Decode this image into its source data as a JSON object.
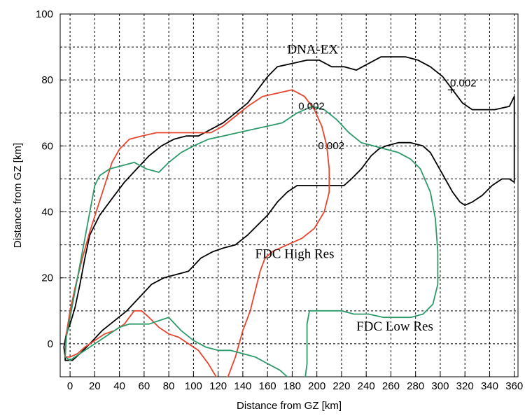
{
  "chart_data": {
    "type": "line",
    "title": "",
    "xlabel": "Distance from GZ [km]",
    "ylabel": "Distance from GZ [km]",
    "xlim": [
      -8,
      363
    ],
    "ylim": [
      -10,
      100
    ],
    "xticks": [
      "0",
      "20",
      "40",
      "60",
      "80",
      "100",
      "120",
      "140",
      "160",
      "180",
      "200",
      "220",
      "240",
      "260",
      "280",
      "300",
      "320",
      "340",
      "360"
    ],
    "yticks": [
      "100",
      "80",
      "60",
      "40",
      "20",
      "0"
    ],
    "grid": true,
    "colors": {
      "dna": "#000000",
      "high": "#e8452e",
      "low": "#2e9a6a"
    },
    "series": [
      {
        "key": "dna",
        "points": [
          [
            -4,
            -4
          ],
          [
            -5,
            -1
          ],
          [
            -3,
            3
          ],
          [
            0,
            6
          ],
          [
            4,
            11
          ],
          [
            8,
            18
          ],
          [
            12,
            26
          ],
          [
            16,
            33
          ],
          [
            24,
            39
          ],
          [
            34,
            44
          ],
          [
            44,
            49
          ],
          [
            54,
            53
          ],
          [
            64,
            57
          ],
          [
            74,
            60
          ],
          [
            84,
            62
          ],
          [
            94,
            63
          ],
          [
            104,
            63
          ],
          [
            114,
            65
          ],
          [
            124,
            67
          ],
          [
            134,
            70
          ],
          [
            144,
            73
          ],
          [
            152,
            77
          ],
          [
            160,
            81
          ],
          [
            168,
            84
          ],
          [
            180,
            85
          ],
          [
            192,
            86
          ],
          [
            202,
            86
          ],
          [
            212,
            84
          ],
          [
            222,
            84
          ],
          [
            232,
            83
          ],
          [
            242,
            85
          ],
          [
            252,
            87
          ],
          [
            262,
            87
          ],
          [
            272,
            87
          ],
          [
            282,
            86
          ],
          [
            292,
            84
          ],
          [
            302,
            81
          ],
          [
            310,
            77
          ],
          [
            318,
            73
          ],
          [
            326,
            71
          ],
          [
            334,
            71
          ],
          [
            344,
            71
          ],
          [
            356,
            72
          ],
          [
            360,
            75
          ],
          [
            360,
            72
          ],
          [
            360,
            60
          ],
          [
            360,
            49
          ],
          [
            356,
            50
          ],
          [
            350,
            50
          ],
          [
            342,
            48
          ],
          [
            334,
            45
          ],
          [
            326,
            43
          ],
          [
            320,
            42
          ],
          [
            316,
            43
          ],
          [
            310,
            46
          ],
          [
            304,
            50
          ],
          [
            298,
            54
          ],
          [
            292,
            58
          ],
          [
            286,
            60
          ],
          [
            276,
            61
          ],
          [
            266,
            61
          ],
          [
            256,
            60
          ],
          [
            250,
            59
          ],
          [
            244,
            57
          ],
          [
            236,
            53
          ],
          [
            228,
            50
          ],
          [
            222,
            48
          ],
          [
            214,
            48
          ],
          [
            204,
            48
          ],
          [
            194,
            48
          ],
          [
            184,
            48
          ],
          [
            176,
            46
          ],
          [
            168,
            43
          ],
          [
            160,
            39
          ],
          [
            152,
            36
          ],
          [
            144,
            33
          ],
          [
            134,
            30
          ],
          [
            124,
            29
          ],
          [
            116,
            28
          ],
          [
            106,
            26
          ],
          [
            96,
            22
          ],
          [
            86,
            21
          ],
          [
            76,
            20
          ],
          [
            66,
            18
          ],
          [
            56,
            14
          ],
          [
            46,
            10
          ],
          [
            36,
            7
          ],
          [
            26,
            4
          ],
          [
            16,
            0
          ],
          [
            8,
            -3
          ],
          [
            2,
            -5
          ],
          [
            -4,
            -5
          ],
          [
            -4,
            -4
          ]
        ]
      },
      {
        "key": "high",
        "points": [
          [
            -4,
            -4
          ],
          [
            -3,
            3
          ],
          [
            0,
            10
          ],
          [
            4,
            17
          ],
          [
            10,
            26
          ],
          [
            16,
            34
          ],
          [
            22,
            41
          ],
          [
            28,
            48
          ],
          [
            34,
            55
          ],
          [
            40,
            59
          ],
          [
            48,
            62
          ],
          [
            58,
            63
          ],
          [
            70,
            64
          ],
          [
            82,
            64
          ],
          [
            94,
            64
          ],
          [
            104,
            64
          ],
          [
            114,
            64
          ],
          [
            124,
            66
          ],
          [
            134,
            69
          ],
          [
            144,
            72
          ],
          [
            156,
            75
          ],
          [
            168,
            76
          ],
          [
            180,
            77
          ],
          [
            190,
            75
          ],
          [
            198,
            71
          ],
          [
            204,
            66
          ],
          [
            208,
            60
          ],
          [
            210,
            53
          ],
          [
            210,
            46
          ],
          [
            206,
            40
          ],
          [
            198,
            35
          ],
          [
            188,
            32
          ],
          [
            176,
            30
          ],
          [
            164,
            28
          ],
          [
            158,
            26
          ],
          [
            154,
            22
          ],
          [
            150,
            16
          ],
          [
            146,
            10
          ],
          [
            140,
            4
          ],
          [
            134,
            -4
          ],
          [
            128,
            -10
          ],
          [
            120,
            -11
          ],
          [
            112,
            -6
          ],
          [
            104,
            -2
          ],
          [
            96,
            0
          ],
          [
            88,
            2
          ],
          [
            80,
            3
          ],
          [
            72,
            5
          ],
          [
            64,
            8
          ],
          [
            58,
            10
          ],
          [
            52,
            10
          ],
          [
            48,
            8
          ],
          [
            44,
            6
          ],
          [
            36,
            4
          ],
          [
            28,
            3
          ],
          [
            20,
            1
          ],
          [
            12,
            -1
          ],
          [
            6,
            -3
          ],
          [
            0,
            -4
          ],
          [
            -4,
            -4
          ]
        ]
      },
      {
        "key": "low",
        "points": [
          [
            -4,
            -4
          ],
          [
            -3,
            2
          ],
          [
            0,
            8
          ],
          [
            4,
            16
          ],
          [
            8,
            24
          ],
          [
            12,
            32
          ],
          [
            16,
            40
          ],
          [
            20,
            48
          ],
          [
            24,
            51
          ],
          [
            32,
            53
          ],
          [
            42,
            54
          ],
          [
            52,
            55
          ],
          [
            62,
            53
          ],
          [
            72,
            52
          ],
          [
            80,
            55
          ],
          [
            90,
            58
          ],
          [
            100,
            60
          ],
          [
            112,
            62
          ],
          [
            124,
            63
          ],
          [
            136,
            64
          ],
          [
            148,
            65
          ],
          [
            160,
            66
          ],
          [
            172,
            67
          ],
          [
            184,
            70
          ],
          [
            196,
            72
          ],
          [
            206,
            71
          ],
          [
            216,
            68
          ],
          [
            226,
            64
          ],
          [
            236,
            61
          ],
          [
            246,
            60
          ],
          [
            256,
            59
          ],
          [
            266,
            58
          ],
          [
            276,
            56
          ],
          [
            284,
            53
          ],
          [
            292,
            46
          ],
          [
            296,
            38
          ],
          [
            298,
            28
          ],
          [
            298,
            18
          ],
          [
            294,
            12
          ],
          [
            286,
            9
          ],
          [
            276,
            8
          ],
          [
            266,
            8
          ],
          [
            254,
            8
          ],
          [
            242,
            9
          ],
          [
            230,
            9
          ],
          [
            220,
            10
          ],
          [
            210,
            10
          ],
          [
            200,
            10
          ],
          [
            194,
            10
          ],
          [
            192,
            6
          ],
          [
            192,
            0
          ],
          [
            192,
            -6
          ],
          [
            190,
            -12
          ],
          [
            186,
            -12
          ],
          [
            180,
            -12
          ],
          [
            176,
            -10
          ],
          [
            170,
            -8
          ],
          [
            160,
            -6
          ],
          [
            150,
            -4
          ],
          [
            140,
            -3
          ],
          [
            130,
            -2
          ],
          [
            120,
            -2
          ],
          [
            110,
            -1
          ],
          [
            100,
            1
          ],
          [
            90,
            4
          ],
          [
            80,
            8
          ],
          [
            72,
            7
          ],
          [
            64,
            6
          ],
          [
            56,
            6
          ],
          [
            48,
            6
          ],
          [
            40,
            5
          ],
          [
            32,
            3
          ],
          [
            24,
            1
          ],
          [
            16,
            -1
          ],
          [
            8,
            -3
          ],
          [
            0,
            -5
          ],
          [
            -4,
            -4
          ]
        ]
      }
    ],
    "annotations": [
      {
        "text": "DNA-EX",
        "x": 176,
        "y": 88,
        "kind": "series"
      },
      {
        "text": "0.002",
        "x": 308,
        "y": 78,
        "kind": "contour"
      },
      {
        "text": "0.002",
        "x": 185,
        "y": 71,
        "kind": "contour"
      },
      {
        "text": "0.002",
        "x": 201,
        "y": 59,
        "kind": "contour"
      },
      {
        "text": "FDC High Res",
        "x": 150,
        "y": 26,
        "kind": "series"
      },
      {
        "text": "FDC Low Res",
        "x": 232,
        "y": 4,
        "kind": "series"
      }
    ],
    "marker": {
      "symbol": "+",
      "x": 309,
      "y": 77
    }
  }
}
